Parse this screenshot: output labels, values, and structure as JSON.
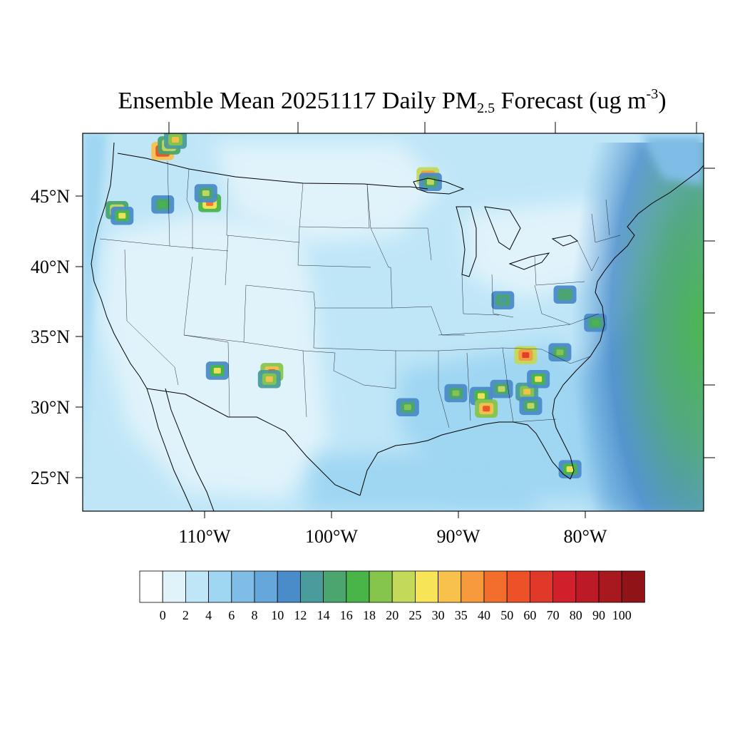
{
  "title": {
    "main": "Ensemble Mean 20251117 Daily PM",
    "sub": "2.5",
    "rest": " Forecast (ug m",
    "sup": "-3",
    "close": ")"
  },
  "axes": {
    "lat_labels": [
      "45°N",
      "40°N",
      "35°N",
      "30°N",
      "25°N"
    ],
    "lon_labels": [
      "110°W",
      "100°W",
      "90°W",
      "80°W"
    ]
  },
  "colorbar": {
    "colors": [
      "#ffffff",
      "#e0f3fb",
      "#bfe6f7",
      "#9fd6f2",
      "#80bde6",
      "#66a7db",
      "#4a8bc9",
      "#4a9c9c",
      "#4aa56e",
      "#49b549",
      "#86c54c",
      "#c3d95a",
      "#f7e457",
      "#f8c14c",
      "#f79a3e",
      "#f36d2c",
      "#ec5128",
      "#e0392a",
      "#d11f2b",
      "#bd1a28",
      "#a8181f",
      "#8f1317"
    ],
    "labels": [
      "0",
      "2",
      "4",
      "6",
      "8",
      "10",
      "12",
      "14",
      "16",
      "18",
      "20",
      "25",
      "30",
      "35",
      "40",
      "50",
      "60",
      "70",
      "80",
      "90",
      "100"
    ]
  },
  "map": {
    "hotspots": [
      {
        "lon": -113.3,
        "lat": 48.2,
        "level": 19
      },
      {
        "lon": -112.8,
        "lat": 48.6,
        "level": 14
      },
      {
        "lon": -112.3,
        "lat": 49.0,
        "level": 13
      },
      {
        "lon": -116.9,
        "lat": 44.0,
        "level": 14
      },
      {
        "lon": -116.5,
        "lat": 43.6,
        "level": 12
      },
      {
        "lon": -109.6,
        "lat": 44.5,
        "level": 15
      },
      {
        "lon": -109.9,
        "lat": 45.2,
        "level": 11
      },
      {
        "lon": -113.3,
        "lat": 44.4,
        "level": 9
      },
      {
        "lon": -109.0,
        "lat": 32.6,
        "level": 12
      },
      {
        "lon": -104.7,
        "lat": 32.5,
        "level": 16
      },
      {
        "lon": -104.9,
        "lat": 32.0,
        "level": 13
      },
      {
        "lon": -94.0,
        "lat": 30.0,
        "level": 10
      },
      {
        "lon": -92.4,
        "lat": 46.4,
        "level": 17
      },
      {
        "lon": -92.2,
        "lat": 46.0,
        "level": 11
      },
      {
        "lon": -90.2,
        "lat": 31.0,
        "level": 10
      },
      {
        "lon": -88.2,
        "lat": 30.8,
        "level": 12
      },
      {
        "lon": -87.8,
        "lat": 29.9,
        "level": 16
      },
      {
        "lon": -86.6,
        "lat": 31.3,
        "level": 11
      },
      {
        "lon": -84.6,
        "lat": 31.1,
        "level": 13
      },
      {
        "lon": -84.3,
        "lat": 30.1,
        "level": 11
      },
      {
        "lon": -84.7,
        "lat": 33.7,
        "level": 17
      },
      {
        "lon": -83.7,
        "lat": 32.0,
        "level": 12
      },
      {
        "lon": -81.2,
        "lat": 25.6,
        "level": 12
      },
      {
        "lon": -82.0,
        "lat": 33.9,
        "level": 10
      },
      {
        "lon": -79.2,
        "lat": 36.0,
        "level": 9
      },
      {
        "lon": -81.6,
        "lat": 38.0,
        "level": 8
      },
      {
        "lon": -86.5,
        "lat": 37.6,
        "level": 7
      }
    ]
  }
}
